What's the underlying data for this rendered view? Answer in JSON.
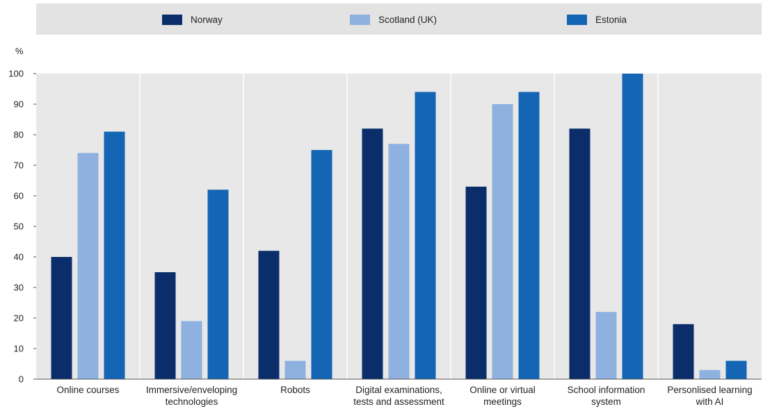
{
  "chart_data": {
    "type": "bar",
    "title": "",
    "xlabel": "",
    "ylabel": "%",
    "ylim": [
      0,
      100
    ],
    "yticks": [
      0,
      10,
      20,
      30,
      40,
      50,
      60,
      70,
      80,
      90,
      100
    ],
    "grid": "vertical separators between categories",
    "legend_position": "top",
    "categories": [
      [
        "Online courses"
      ],
      [
        "Immersive/enveloping",
        "technologies"
      ],
      [
        "Robots"
      ],
      [
        "Digital examinations,",
        "tests and assessment"
      ],
      [
        "Online or virtual",
        "meetings"
      ],
      [
        "School information",
        "system"
      ],
      [
        "Personlised learning",
        "with AI"
      ]
    ],
    "series": [
      {
        "name": "Norway",
        "color": "#0b2e6b",
        "values": [
          40,
          35,
          42,
          82,
          63,
          82,
          18
        ]
      },
      {
        "name": "Scotland (UK)",
        "color": "#8fb1e0",
        "values": [
          74,
          19,
          6,
          77,
          90,
          22,
          3
        ]
      },
      {
        "name": "Estonia",
        "color": "#1466b5",
        "values": [
          81,
          62,
          75,
          94,
          94,
          100,
          6
        ]
      }
    ]
  },
  "colors": {
    "legend_bg": "#e3e3e3",
    "plot_bg": "#e8e8e8",
    "separator": "#ffffff",
    "axis": "#555555"
  }
}
